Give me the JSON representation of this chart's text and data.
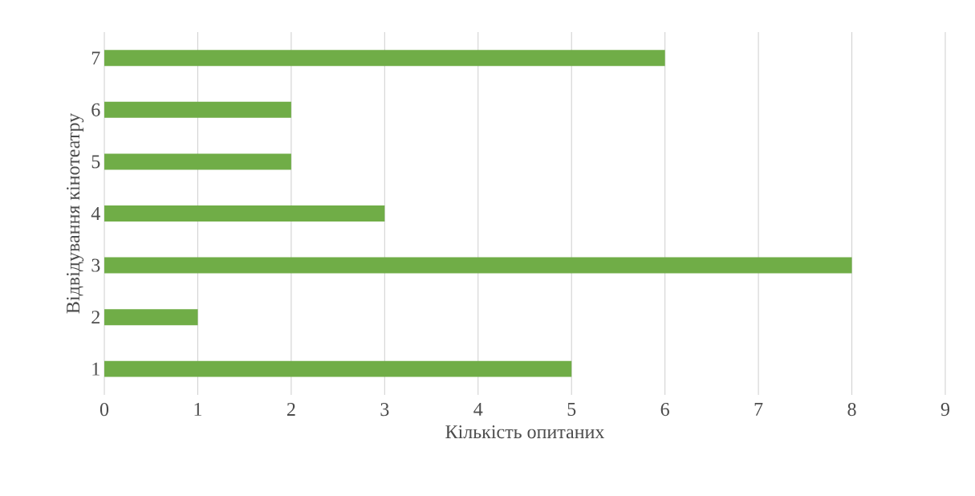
{
  "chart_data": {
    "type": "bar",
    "orientation": "horizontal",
    "xlabel": "Кількість опитаних",
    "ylabel": "Відвідування кінотеатру",
    "categories": [
      "7",
      "6",
      "5",
      "4",
      "3",
      "2",
      "1"
    ],
    "values": [
      6,
      2,
      2,
      3,
      8,
      1,
      5
    ],
    "color": "#70ad47",
    "xlim": [
      0,
      9
    ],
    "xticks": [
      0,
      1,
      2,
      3,
      4,
      5,
      6,
      7,
      8,
      9
    ],
    "grid": "x"
  }
}
